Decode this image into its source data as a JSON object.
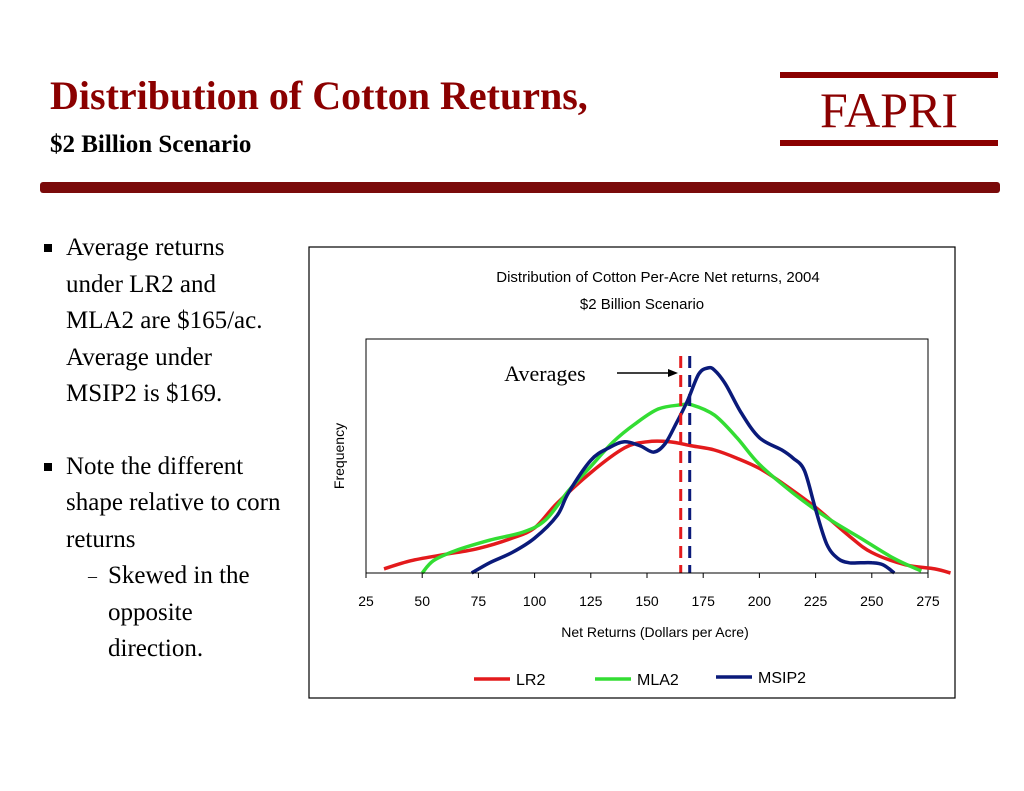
{
  "slide": {
    "title": "Distribution of Cotton Returns,",
    "subtitle": "$2 Billion Scenario",
    "logo_text": "FAPRI",
    "bullets": [
      "Average returns under LR2 and MLA2 are $165/ac. Average under MSIP2 is $169.",
      "Note the different shape relative to corn returns"
    ],
    "sub_bullet": "Skewed in the opposite direction.",
    "sub_bullet_mark": "–"
  },
  "colors": {
    "title": "#8b0000",
    "divider": "#7a0a0a",
    "LR2": "#e31a1c",
    "MLA2": "#33dd33",
    "MSIP2": "#0a1a7a"
  },
  "chart_data": {
    "type": "line",
    "title": "Distribution of Cotton Per-Acre Net returns, 2004",
    "subtitle": "$2 Billion Scenario",
    "xlabel": "Net Returns (Dollars per Acre)",
    "ylabel": "Frequency",
    "xlim": [
      25,
      275
    ],
    "ylim": [
      0,
      100
    ],
    "x_ticks": [
      25,
      50,
      75,
      100,
      125,
      150,
      175,
      200,
      225,
      250,
      275
    ],
    "annotation": "Averages",
    "averages": [
      {
        "series": "LR2/MLA2",
        "value": 165,
        "color": "#e31a1c"
      },
      {
        "series": "MSIP2",
        "value": 169,
        "color": "#0a1a7a"
      }
    ],
    "legend": "bottom",
    "series": [
      {
        "name": "LR2",
        "color": "#e31a1c",
        "x": [
          33,
          45,
          60,
          75,
          90,
          100,
          110,
          125,
          140,
          150,
          160,
          170,
          180,
          190,
          200,
          210,
          225,
          240,
          250,
          265,
          278,
          285
        ],
        "y": [
          2,
          6,
          9,
          12,
          17,
          22,
          34,
          49,
          61,
          64,
          64,
          62,
          60,
          56,
          51,
          44,
          32,
          18,
          10,
          4,
          2,
          0
        ]
      },
      {
        "name": "MLA2",
        "color": "#33dd33",
        "x": [
          50,
          55,
          65,
          80,
          95,
          105,
          115,
          125,
          135,
          145,
          155,
          165,
          170,
          180,
          190,
          200,
          215,
          230,
          245,
          260,
          272
        ],
        "y": [
          0,
          6,
          11,
          16,
          20,
          26,
          40,
          52,
          64,
          73,
          80,
          82,
          82,
          77,
          66,
          53,
          39,
          27,
          17,
          7,
          1
        ]
      },
      {
        "name": "MSIP2",
        "color": "#0a1a7a",
        "x": [
          72,
          80,
          90,
          100,
          110,
          115,
          125,
          133,
          140,
          147,
          153,
          158,
          163,
          168,
          173,
          177,
          180,
          185,
          192,
          200,
          210,
          215,
          220,
          225,
          230,
          235,
          240,
          245,
          250,
          255,
          260
        ],
        "y": [
          0,
          5,
          10,
          17,
          28,
          39,
          55,
          61,
          64,
          62,
          59,
          63,
          73,
          84,
          97,
          100,
          99,
          92,
          78,
          66,
          60,
          56,
          50,
          31,
          14,
          7,
          5,
          5,
          5,
          4,
          0
        ]
      }
    ]
  }
}
